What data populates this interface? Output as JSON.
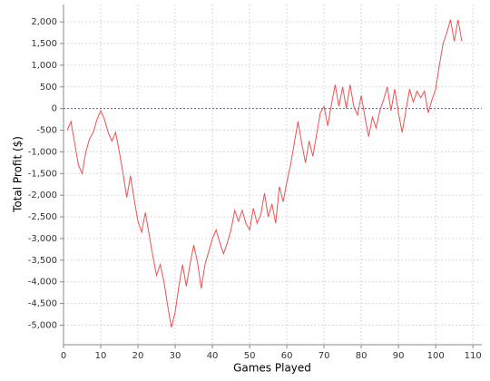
{
  "chart_data": {
    "type": "line",
    "xlabel": "Games Played",
    "ylabel": "Total Profit ($)",
    "x": [
      1,
      2,
      3,
      4,
      5,
      6,
      7,
      8,
      9,
      10,
      11,
      12,
      13,
      14,
      15,
      16,
      17,
      18,
      19,
      20,
      21,
      22,
      23,
      24,
      25,
      26,
      27,
      28,
      29,
      30,
      31,
      32,
      33,
      34,
      35,
      36,
      37,
      38,
      39,
      40,
      41,
      42,
      43,
      44,
      45,
      46,
      47,
      48,
      49,
      50,
      51,
      52,
      53,
      54,
      55,
      56,
      57,
      58,
      59,
      60,
      61,
      62,
      63,
      64,
      65,
      66,
      67,
      68,
      69,
      70,
      71,
      72,
      73,
      74,
      75,
      76,
      77,
      78,
      79,
      80,
      81,
      82,
      83,
      84,
      85,
      86,
      87,
      88,
      89,
      90,
      91,
      92,
      93,
      94,
      95,
      96,
      97,
      98,
      99,
      100,
      101,
      102,
      103,
      104,
      105,
      106,
      107
    ],
    "series": [
      {
        "name": "Total Profit",
        "color": "#ee5050",
        "values": [
          -500,
          -300,
          -800,
          -1300,
          -1500,
          -1000,
          -700,
          -550,
          -250,
          -50,
          -250,
          -550,
          -750,
          -550,
          -1000,
          -1500,
          -2050,
          -1550,
          -2100,
          -2600,
          -2850,
          -2400,
          -2900,
          -3400,
          -3850,
          -3600,
          -4000,
          -4550,
          -5050,
          -4700,
          -4100,
          -3600,
          -4100,
          -3600,
          -3150,
          -3550,
          -4150,
          -3600,
          -3300,
          -3000,
          -2800,
          -3100,
          -3350,
          -3100,
          -2800,
          -2350,
          -2600,
          -2350,
          -2650,
          -2800,
          -2300,
          -2650,
          -2450,
          -1950,
          -2500,
          -2200,
          -2650,
          -1800,
          -2150,
          -1700,
          -1300,
          -800,
          -300,
          -800,
          -1250,
          -750,
          -1100,
          -600,
          -100,
          50,
          -400,
          100,
          550,
          50,
          500,
          0,
          550,
          50,
          -150,
          300,
          -200,
          -650,
          -200,
          -450,
          -50,
          200,
          500,
          -50,
          450,
          -100,
          -550,
          -50,
          450,
          150,
          400,
          250,
          400,
          -100,
          200,
          450,
          1000,
          1500,
          1750,
          2050,
          1550,
          2050,
          1550
        ]
      }
    ],
    "xlim": [
      0,
      112.4
    ],
    "ylim": [
      -5450,
      2400
    ],
    "xticks": [
      0,
      10,
      20,
      30,
      40,
      50,
      60,
      70,
      80,
      90,
      100,
      110
    ],
    "yticks": [
      {
        "value": -5000,
        "label": "-5,000"
      },
      {
        "value": -4500,
        "label": "-4,500"
      },
      {
        "value": -4000,
        "label": "-4,000"
      },
      {
        "value": -3500,
        "label": "-3,500"
      },
      {
        "value": -3000,
        "label": "-3,000"
      },
      {
        "value": -2500,
        "label": "-2,500"
      },
      {
        "value": -2000,
        "label": "-2,000"
      },
      {
        "value": -1500,
        "label": "-1,500"
      },
      {
        "value": -1000,
        "label": "-1,000"
      },
      {
        "value": -500,
        "label": "-500"
      },
      0,
      500,
      {
        "value": 1000,
        "label": "1,000"
      },
      {
        "value": 1500,
        "label": "1,500"
      },
      {
        "value": 2000,
        "label": "2,000"
      }
    ],
    "grid": true,
    "reference_line": {
      "value": 0,
      "color": "#5050ff"
    }
  }
}
